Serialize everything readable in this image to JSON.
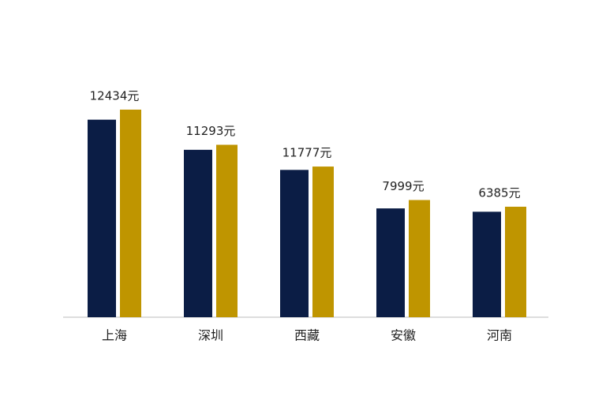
{
  "chart_data": {
    "type": "bar",
    "categories": [
      "上海",
      "深圳",
      "西藏",
      "安徽",
      "河南"
    ],
    "series": [
      {
        "color": "#0b1d45",
        "values": [
          11800,
          10000,
          8800,
          6500,
          6300
        ]
      },
      {
        "color": "#bf9500",
        "values": [
          12400,
          10300,
          9000,
          7000,
          6600
        ]
      }
    ],
    "annotations": [
      "12434元",
      "11293元",
      "11777元",
      "7999元",
      "6385元"
    ],
    "ylim": [
      0,
      14000
    ]
  }
}
